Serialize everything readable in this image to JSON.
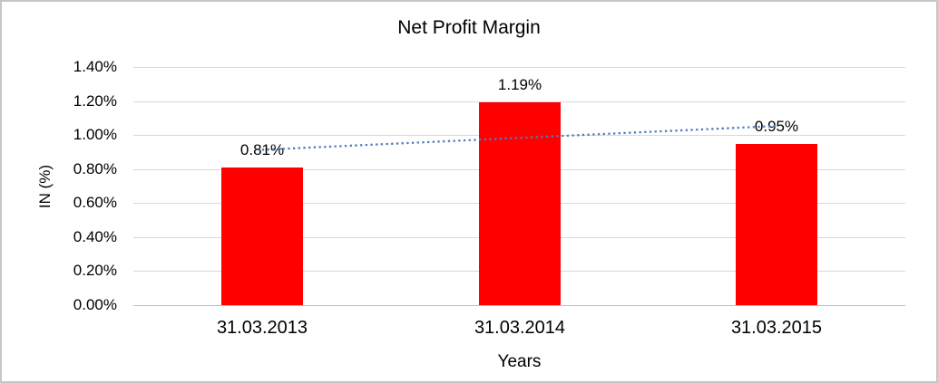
{
  "chart_frame": {
    "background": "#FFFFFF",
    "border_color": "#C6C6C6"
  },
  "chart_data": {
    "type": "bar",
    "title": "Net Profit Margin",
    "xlabel": "Years",
    "ylabel": "IN (%)",
    "categories": [
      "31.03.2013",
      "31.03.2014",
      "31.03.2015"
    ],
    "values": [
      0.81,
      1.19,
      0.95
    ],
    "data_labels": [
      "0.81%",
      "1.19%",
      "0.95%"
    ],
    "ylim": [
      0,
      1.4
    ],
    "ytick_step": 0.2,
    "ytick_labels": [
      "0.00%",
      "0.20%",
      "0.40%",
      "0.60%",
      "0.80%",
      "1.00%",
      "1.20%",
      "1.40%"
    ],
    "grid": true,
    "legend": "none",
    "bar_color": "#FF0000",
    "gridline_color": "#D9D9D9",
    "axis_line_color": "#BFBFBF",
    "trendline": {
      "type": "linear",
      "style": "dotted",
      "color": "#4A7EBB"
    }
  }
}
